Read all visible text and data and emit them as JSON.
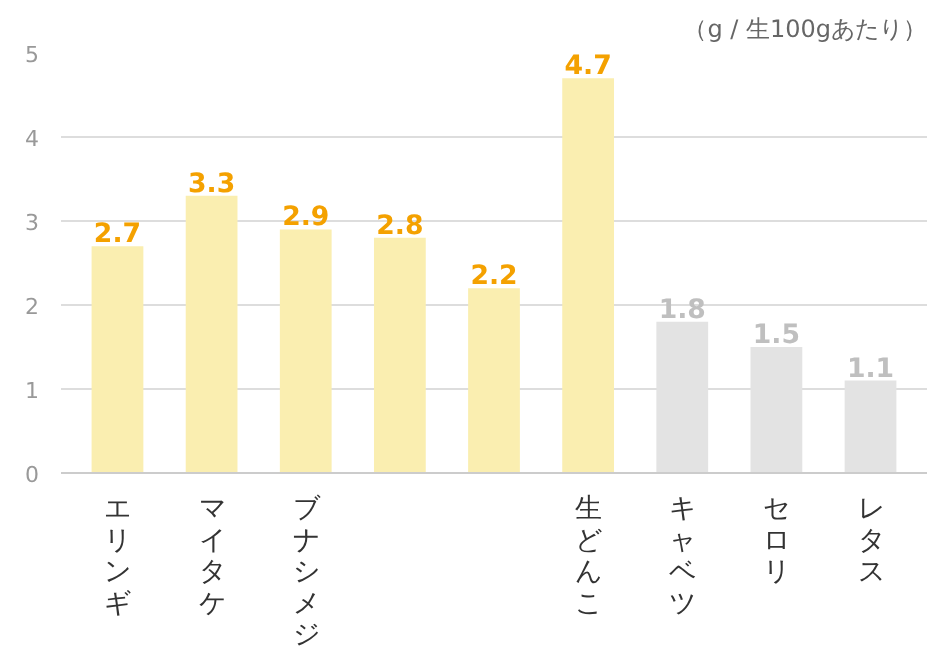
{
  "chart_data": {
    "type": "bar",
    "categories": [
      "エリンギ",
      "マイタケ",
      "ブナシメジ",
      null,
      null,
      "生どんこ",
      "キャベツ",
      "セロリ",
      "レタス"
    ],
    "values": [
      2.7,
      3.3,
      2.9,
      2.8,
      2.2,
      4.7,
      1.8,
      1.5,
      1.1
    ],
    "colors": [
      "#faeeb0",
      "#faeeb0",
      "#faeeb0",
      "#faeeb0",
      "#faeeb0",
      "#faeeb0",
      "#e3e3e3",
      "#e3e3e3",
      "#e3e3e3"
    ],
    "ylim": [
      0,
      5
    ],
    "yticks": [
      0,
      1,
      2,
      3,
      4,
      5
    ],
    "grid": "y",
    "data_labels": true,
    "annotations": [
      "（g / 生100gあたり）"
    ]
  }
}
